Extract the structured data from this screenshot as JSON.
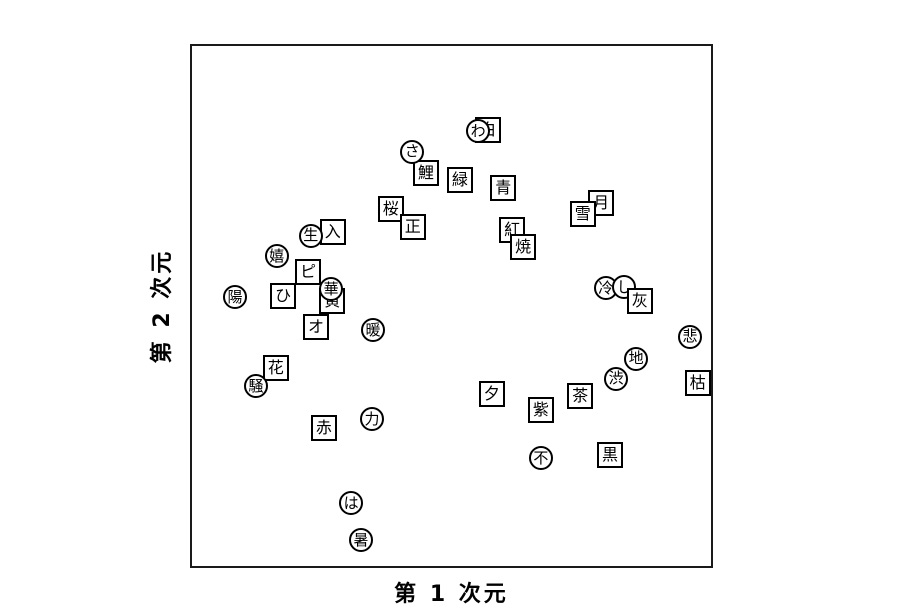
{
  "colors": {
    "background": "#ffffff",
    "frame_stroke": "#1a1a1a",
    "marker_stroke": "#000000",
    "marker_fill": "#ffffff",
    "text": "#000000"
  },
  "chart_data": {
    "type": "scatter",
    "title": "",
    "xlabel": "第 1 次元",
    "ylabel": "第 2 次元",
    "legend_position": "none",
    "grid": false,
    "axis_ticks_shown": false,
    "frame": true,
    "marker_types": [
      "circle",
      "square"
    ],
    "coordinate_note": "x and y are normalized 0-1 within the plot frame, y increases upward; points listed in draw order (later = on top)",
    "points": [
      {
        "label": "月",
        "marker": "square",
        "x": 0.786,
        "y": 0.697
      },
      {
        "label": "雪",
        "marker": "square",
        "x": 0.751,
        "y": 0.676
      },
      {
        "label": "鯉",
        "marker": "square",
        "x": 0.451,
        "y": 0.754
      },
      {
        "label": "さ",
        "marker": "circle",
        "x": 0.425,
        "y": 0.794
      },
      {
        "label": "白",
        "marker": "square",
        "x": 0.57,
        "y": 0.836
      },
      {
        "label": "わ",
        "marker": "circle",
        "x": 0.551,
        "y": 0.834
      },
      {
        "label": "緑",
        "marker": "square",
        "x": 0.516,
        "y": 0.74
      },
      {
        "label": "青",
        "marker": "square",
        "x": 0.599,
        "y": 0.725
      },
      {
        "label": "桜",
        "marker": "square",
        "x": 0.384,
        "y": 0.685
      },
      {
        "label": "正",
        "marker": "square",
        "x": 0.426,
        "y": 0.651
      },
      {
        "label": "紅",
        "marker": "square",
        "x": 0.616,
        "y": 0.645
      },
      {
        "label": "焼",
        "marker": "square",
        "x": 0.637,
        "y": 0.613
      },
      {
        "label": "入",
        "marker": "square",
        "x": 0.273,
        "y": 0.641
      },
      {
        "label": "生",
        "marker": "circle",
        "x": 0.231,
        "y": 0.634
      },
      {
        "label": "嬉",
        "marker": "circle",
        "x": 0.166,
        "y": 0.595
      },
      {
        "label": "ピ",
        "marker": "square",
        "x": 0.226,
        "y": 0.565
      },
      {
        "label": "ひ",
        "marker": "square",
        "x": 0.178,
        "y": 0.519
      },
      {
        "label": "陽",
        "marker": "circle",
        "x": 0.086,
        "y": 0.517
      },
      {
        "label": "黄",
        "marker": "square",
        "x": 0.272,
        "y": 0.51
      },
      {
        "label": "華",
        "marker": "circle",
        "x": 0.27,
        "y": 0.532
      },
      {
        "label": "オ",
        "marker": "square",
        "x": 0.241,
        "y": 0.46
      },
      {
        "label": "暖",
        "marker": "circle",
        "x": 0.35,
        "y": 0.454
      },
      {
        "label": "冷",
        "marker": "circle",
        "x": 0.795,
        "y": 0.534
      },
      {
        "label": "し",
        "marker": "circle",
        "x": 0.83,
        "y": 0.536
      },
      {
        "label": "灰",
        "marker": "square",
        "x": 0.86,
        "y": 0.51
      },
      {
        "label": "悲",
        "marker": "circle",
        "x": 0.956,
        "y": 0.441
      },
      {
        "label": "地",
        "marker": "circle",
        "x": 0.853,
        "y": 0.399
      },
      {
        "label": "渋",
        "marker": "circle",
        "x": 0.815,
        "y": 0.361
      },
      {
        "label": "枯",
        "marker": "square",
        "x": 0.971,
        "y": 0.353
      },
      {
        "label": "茶",
        "marker": "square",
        "x": 0.746,
        "y": 0.328
      },
      {
        "label": "花",
        "marker": "square",
        "x": 0.164,
        "y": 0.382
      },
      {
        "label": "騒",
        "marker": "circle",
        "x": 0.126,
        "y": 0.347
      },
      {
        "label": "赤",
        "marker": "square",
        "x": 0.256,
        "y": 0.267
      },
      {
        "label": "力",
        "marker": "circle",
        "x": 0.348,
        "y": 0.284
      },
      {
        "label": "夕",
        "marker": "square",
        "x": 0.577,
        "y": 0.332
      },
      {
        "label": "紫",
        "marker": "square",
        "x": 0.671,
        "y": 0.302
      },
      {
        "label": "不",
        "marker": "circle",
        "x": 0.671,
        "y": 0.21
      },
      {
        "label": "黒",
        "marker": "square",
        "x": 0.803,
        "y": 0.216
      },
      {
        "label": "は",
        "marker": "circle",
        "x": 0.308,
        "y": 0.124
      },
      {
        "label": "暑",
        "marker": "circle",
        "x": 0.327,
        "y": 0.053
      }
    ]
  }
}
